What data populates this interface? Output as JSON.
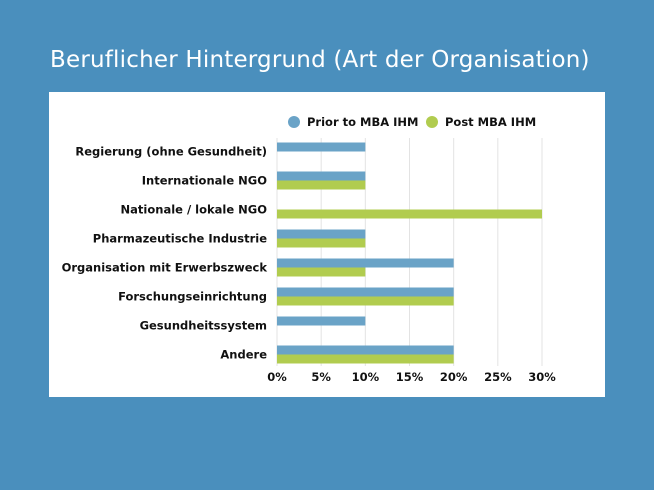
{
  "page": {
    "title": "Beruflicher Hintergrund (Art der Organisation)"
  },
  "chart_data": {
    "type": "bar",
    "orientation": "horizontal",
    "title": "Beruflicher Hintergrund (Art der Organisation)",
    "categories": [
      "Regierung (ohne Gesundheit)",
      "Internationale NGO",
      "Nationale / lokale NGO",
      "Pharmazeutische Industrie",
      "Organisation mit Erwerbszweck",
      "Forschungseinrichtung",
      "Gesundheitssystem",
      "Andere"
    ],
    "series": [
      {
        "name": "Prior to MBA IHM",
        "color": "#6aa3c7",
        "values": [
          10,
          10,
          0,
          10,
          20,
          20,
          10,
          20
        ]
      },
      {
        "name": "Post MBA IHM",
        "color": "#b1cc4f",
        "values": [
          0,
          10,
          30,
          10,
          10,
          20,
          0,
          20
        ]
      }
    ],
    "xlim": [
      0,
      30
    ],
    "x_ticks": [
      "0%",
      "5%",
      "10%",
      "15%",
      "20%",
      "25%",
      "30%"
    ],
    "x_tick_values": [
      0,
      5,
      10,
      15,
      20,
      25,
      30
    ],
    "grid": true,
    "legend": "top-right"
  }
}
